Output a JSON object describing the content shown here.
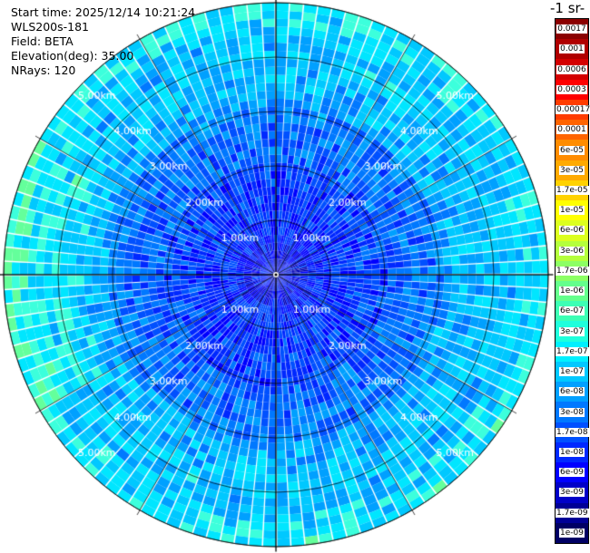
{
  "header": {
    "start_time": "Start time: 2025/12/14 10:21:24",
    "instrument": "WLS200s-181",
    "field": "Field: BETA",
    "elevation": "Elevation(deg): 35.00",
    "nrays": "NRays: 120"
  },
  "colorbar": {
    "unit_label": "-1 sr-",
    "labels": [
      "0.0017",
      "0.001",
      "0.0006",
      "0.0003",
      "0.00017",
      "0.0001",
      "6e-05",
      "3e-05",
      "1.7e-05",
      "1e-05",
      "6e-06",
      "3e-06",
      "1.7e-06",
      "1e-06",
      "6e-07",
      "3e-07",
      "1.7e-07",
      "1e-07",
      "6e-08",
      "3e-08",
      "1.7e-08",
      "1e-08",
      "6e-09",
      "3e-09",
      "1.7e-09",
      "1e-09"
    ],
    "colors": [
      "#8b0000",
      "#b00000",
      "#d40000",
      "#ff0000",
      "#ff3c00",
      "#ff6400",
      "#ff8c00",
      "#ffaa00",
      "#ffd200",
      "#ffff00",
      "#dcff1e",
      "#b4ff3c",
      "#8cff64",
      "#64ff8c",
      "#3cffb4",
      "#1effdc",
      "#00f0ff",
      "#00c8ff",
      "#00a0ff",
      "#0078ff",
      "#0050ff",
      "#0028ff",
      "#0000ff",
      "#0000c8",
      "#000096",
      "#000064"
    ]
  },
  "chart_data": {
    "type": "ppi",
    "range_labels": [
      "1.00km",
      "2.00km",
      "3.00km",
      "4.00km",
      "5.00km"
    ],
    "range_rings_km": [
      1,
      2,
      3,
      4,
      5
    ],
    "max_range_km": 5.0,
    "nrays": 120,
    "radial_gates": 34,
    "value_range": [
      1e-09,
      0.0017
    ],
    "log_scale": true,
    "grid": true
  }
}
